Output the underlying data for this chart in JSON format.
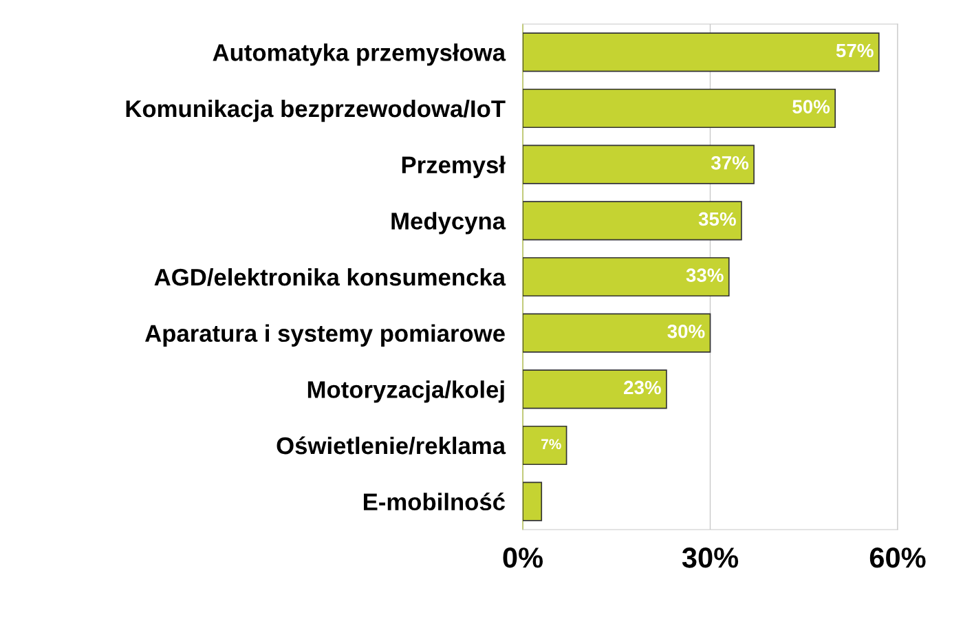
{
  "chart_data": {
    "type": "bar",
    "orientation": "horizontal",
    "categories": [
      "Automatyka przemysłowa",
      "Komunikacja bezprzewodowa/IoT",
      "Przemysł",
      "Medycyna",
      "AGD/elektronika konsumencka",
      "Aparatura i systemy pomiarowe",
      "Motoryzacja/kolej",
      "Oświetlenie/reklama",
      "E-mobilność"
    ],
    "values": [
      57,
      50,
      37,
      35,
      33,
      30,
      23,
      7,
      3
    ],
    "value_labels": [
      "57%",
      "50%",
      "37%",
      "35%",
      "33%",
      "30%",
      "23%",
      "7%",
      null
    ],
    "color": "#c5d332",
    "xlim": [
      0,
      60
    ],
    "xticks": [
      {
        "value": 0,
        "label": "0%"
      },
      {
        "value": 30,
        "label": "30%"
      },
      {
        "value": 60,
        "label": "60%"
      }
    ],
    "grid": "x",
    "legend": false
  }
}
